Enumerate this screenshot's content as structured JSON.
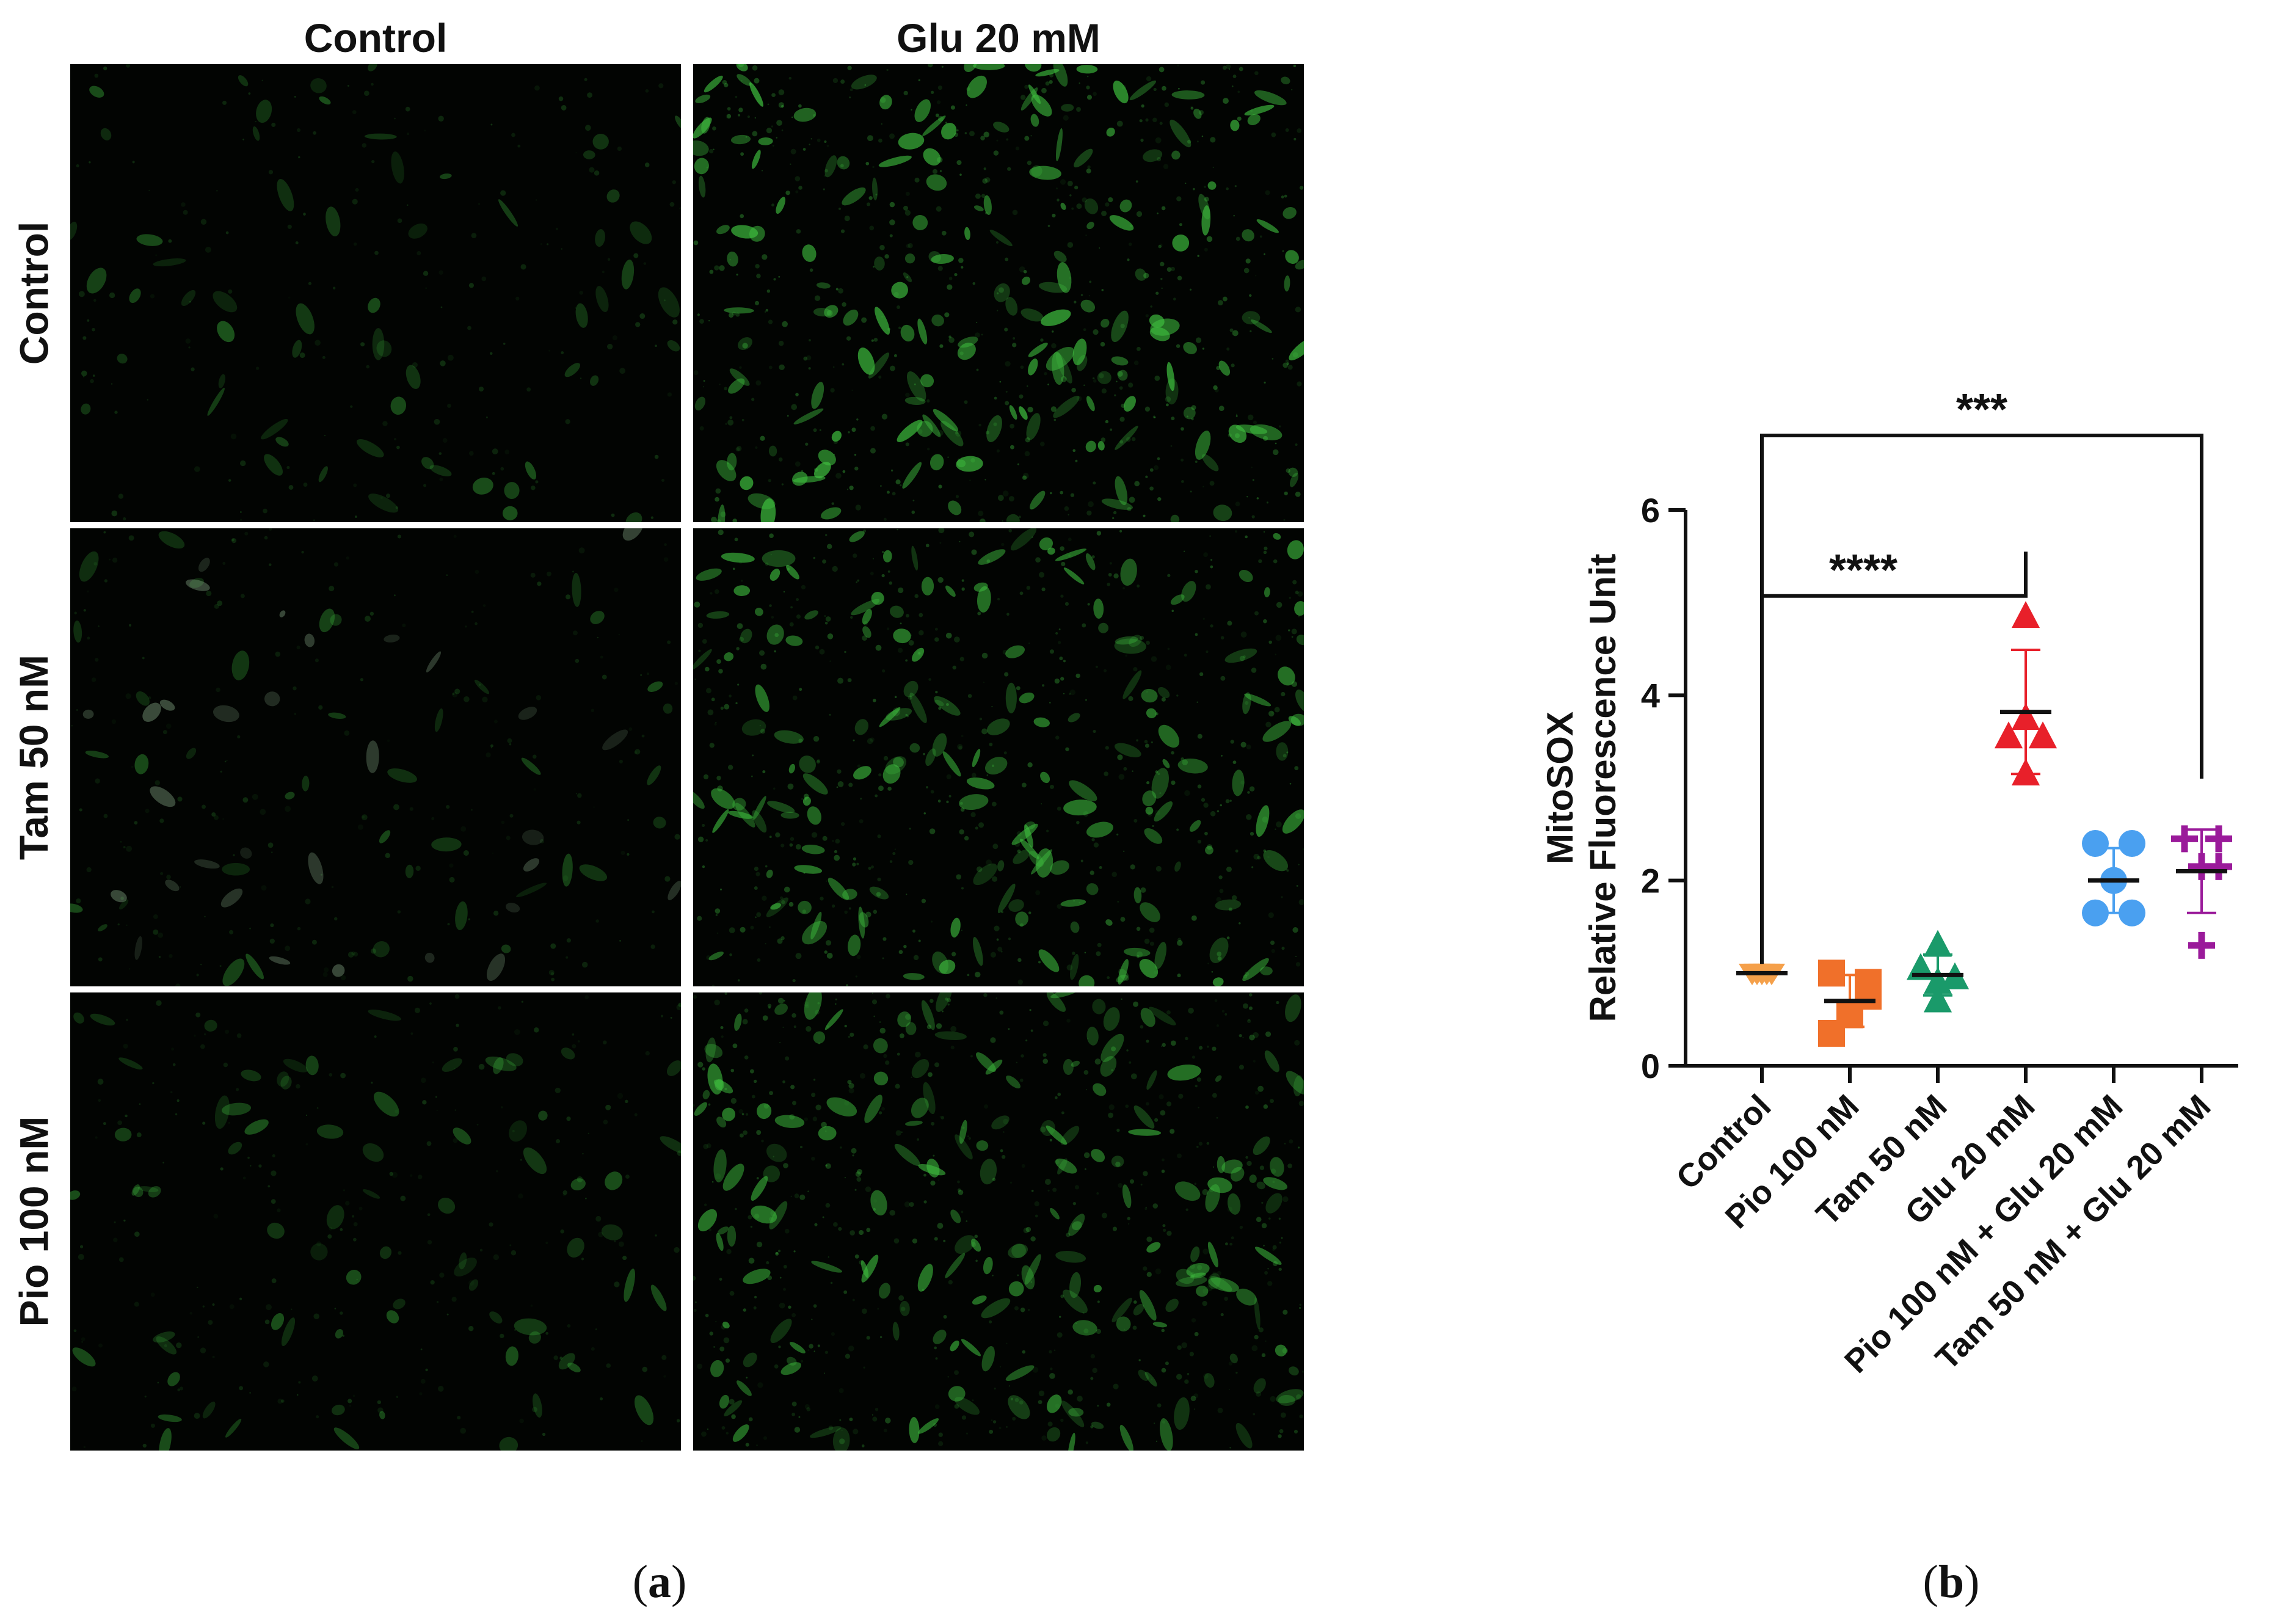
{
  "panel_a": {
    "column_labels": [
      "Control",
      "Glu 20 mM"
    ],
    "row_labels": [
      "Control",
      "Tam 50 nM",
      "Pio 100 nM"
    ],
    "caption_letter": "a",
    "image_color": "#3fbf3f"
  },
  "panel_b": {
    "caption_letter": "b"
  },
  "chart_data": {
    "type": "scatter",
    "ylabel_line1": "MitoSOX",
    "ylabel_line2": "Relative Fluorescence Unit",
    "ylim": [
      0,
      6
    ],
    "yticks": [
      "0",
      "2",
      "4",
      "6"
    ],
    "categories": [
      "Control",
      "Pio 100 nM",
      "Tam 50 nM",
      "Glu 20 mM",
      "Pio 100 nM + Glu 20 mM",
      "Tam 50 nM + Glu 20 mM"
    ],
    "series": [
      {
        "category": "Control",
        "marker": "triangle-down",
        "color": "#f5a04a",
        "values": [
          1.0,
          1.0,
          1.0,
          1.0,
          1.0
        ],
        "mean": 1.0,
        "error": 0.0
      },
      {
        "category": "Pio 100 nM",
        "marker": "square",
        "color": "#f0702a",
        "values": [
          1.0,
          0.9,
          0.55,
          0.35,
          0.75
        ],
        "mean": 0.7,
        "error": 0.28
      },
      {
        "category": "Tam 50 nM",
        "marker": "triangle-up",
        "color": "#1a9a6a",
        "values": [
          1.3,
          1.05,
          0.95,
          0.9,
          0.7
        ],
        "mean": 0.98,
        "error": 0.22
      },
      {
        "category": "Glu 20 mM",
        "marker": "triangle-up",
        "color": "#e8202a",
        "values": [
          4.85,
          3.75,
          3.55,
          3.55,
          3.15
        ],
        "mean": 3.82,
        "error": 0.67
      },
      {
        "category": "Pio 100 nM + Glu 20 mM",
        "marker": "circle",
        "color": "#4aa0f0",
        "values": [
          2.4,
          2.4,
          2.0,
          1.65,
          1.65
        ],
        "mean": 2.0,
        "error": 0.35
      },
      {
        "category": "Tam 50 nM + Glu 20 mM",
        "marker": "plus",
        "color": "#9a1a9a",
        "values": [
          2.45,
          2.45,
          2.15,
          2.15,
          1.3
        ],
        "mean": 2.1,
        "error": 0.45
      }
    ],
    "significance": [
      {
        "from": "Control",
        "to": "Glu 20 mM",
        "label": "****"
      },
      {
        "from": "Control",
        "to": "Tam 50 nM + Glu 20 mM",
        "label": "***"
      }
    ]
  }
}
